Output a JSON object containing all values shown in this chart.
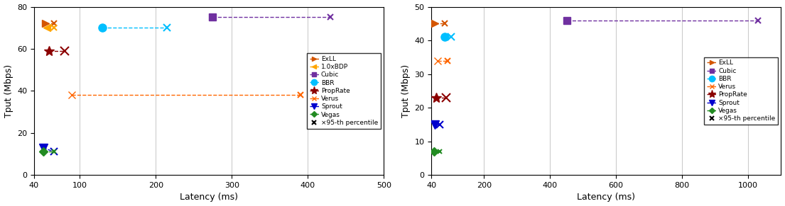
{
  "left": {
    "xlim": [
      40,
      500
    ],
    "ylim": [
      0,
      80
    ],
    "xlabel": "Latency (ms)",
    "ylabel": "Tput (Mbps)",
    "xticks": [
      40,
      100,
      200,
      300,
      400,
      500
    ],
    "yticks": [
      0,
      20,
      40,
      60,
      80
    ],
    "series": [
      {
        "name": "ExLL",
        "color": "#D45500",
        "marker": ">",
        "ms": 7,
        "x1": 55,
        "y1": 72,
        "x2": 66,
        "y2": 72
      },
      {
        "name": "1.0xBDP",
        "color": "#FFA500",
        "marker": "<",
        "ms": 7,
        "x1": 57,
        "y1": 70,
        "x2": 66,
        "y2": 70
      },
      {
        "name": "Cubic",
        "color": "#7030A0",
        "marker": "s",
        "ms": 7,
        "x1": 275,
        "y1": 75,
        "x2": 430,
        "y2": 75
      },
      {
        "name": "BBR",
        "color": "#00BFFF",
        "marker": "o",
        "ms": 8,
        "x1": 130,
        "y1": 70,
        "x2": 215,
        "y2": 70
      },
      {
        "name": "PropRate",
        "color": "#8B0000",
        "marker": "*",
        "ms": 10,
        "x1": 60,
        "y1": 59,
        "x2": 80,
        "y2": 59
      },
      {
        "name": "Verus",
        "color": "#FF6600",
        "marker": "x",
        "ms": 7,
        "x1": 90,
        "y1": 38,
        "x2": 390,
        "y2": 38
      },
      {
        "name": "Sprout",
        "color": "#0000CD",
        "marker": "v",
        "ms": 8,
        "x1": 52,
        "y1": 13,
        "x2": 66,
        "y2": 11
      },
      {
        "name": "Vegas",
        "color": "#228B22",
        "marker": "D",
        "ms": 6,
        "x1": 52,
        "y1": 11,
        "x2": 66,
        "y2": 11
      }
    ]
  },
  "right": {
    "xlim": [
      40,
      1100
    ],
    "ylim": [
      0,
      50
    ],
    "xlabel": "Latency (ms)",
    "ylabel": "Tput (Mbps)",
    "xticks": [
      40,
      200,
      400,
      600,
      800,
      1000
    ],
    "yticks": [
      0,
      10,
      20,
      30,
      40,
      50
    ],
    "series": [
      {
        "name": "ExLL",
        "color": "#D45500",
        "marker": ">",
        "ms": 7,
        "x1": 50,
        "y1": 45,
        "x2": 80,
        "y2": 45
      },
      {
        "name": "Cubic",
        "color": "#7030A0",
        "marker": "s",
        "ms": 7,
        "x1": 450,
        "y1": 46,
        "x2": 1030,
        "y2": 46
      },
      {
        "name": "BBR",
        "color": "#00BFFF",
        "marker": "o",
        "ms": 8,
        "x1": 80,
        "y1": 41,
        "x2": 100,
        "y2": 41
      },
      {
        "name": "Verus",
        "color": "#FF6600",
        "marker": "x",
        "ms": 7,
        "x1": 60,
        "y1": 34,
        "x2": 90,
        "y2": 34
      },
      {
        "name": "PropRate",
        "color": "#8B0000",
        "marker": "*",
        "ms": 10,
        "x1": 55,
        "y1": 23,
        "x2": 85,
        "y2": 23
      },
      {
        "name": "Sprout",
        "color": "#0000CD",
        "marker": "v",
        "ms": 8,
        "x1": 50,
        "y1": 15,
        "x2": 65,
        "y2": 15
      },
      {
        "name": "Vegas",
        "color": "#228B22",
        "marker": "D",
        "ms": 6,
        "x1": 48,
        "y1": 7,
        "x2": 65,
        "y2": 7
      }
    ]
  }
}
